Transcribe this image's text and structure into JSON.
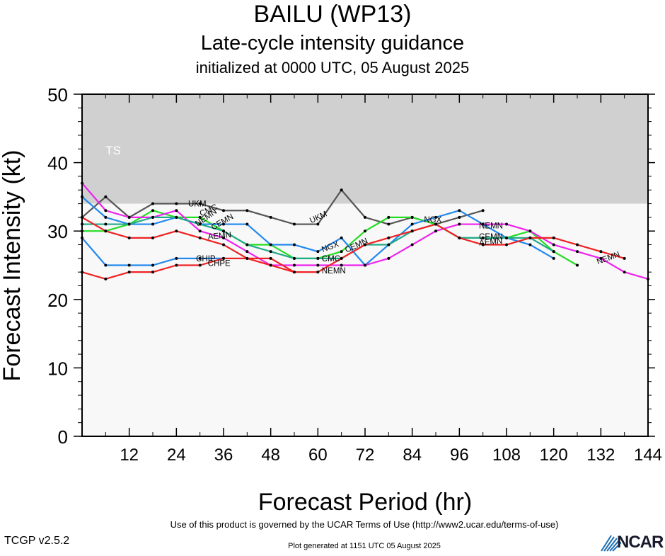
{
  "title": "BAILU (WP13)",
  "subtitle": "Late-cycle intensity guidance",
  "init_line": "initialized at 0000 UTC, 05 August 2025",
  "footer": {
    "terms": "Use of this product is governed by the UCAR Terms of Use (http://www2.ucar.edu/terms-of-use)",
    "version": "TCGP v2.5.2",
    "generated": "Plot generated at 1151 UTC   05 August 2025",
    "logo": "NCAR"
  },
  "colors": {
    "background_band": "#f8f8f8",
    "ts_band": "#d0d0d0",
    "logo_blue": "#1f6fb4"
  },
  "chart_data": {
    "type": "line",
    "xlabel": "Forecast Period (hr)",
    "ylabel": "Forecast Intensity (kt)",
    "xlim": [
      0,
      144
    ],
    "ylim": [
      0,
      50
    ],
    "xticks": [
      12,
      24,
      36,
      48,
      60,
      72,
      84,
      96,
      108,
      120,
      132,
      144
    ],
    "yticks": [
      0,
      10,
      20,
      30,
      40,
      50
    ],
    "bands": [
      {
        "label": "TS",
        "from": 34,
        "to": 50,
        "color": "#d0d0d0"
      },
      {
        "label": "",
        "from": 0,
        "to": 34,
        "color": "#f8f8f8"
      }
    ],
    "grid": false,
    "series": [
      {
        "name": "UKM",
        "color": "#555555",
        "x": [
          0,
          6,
          12,
          18,
          24,
          30,
          36,
          42,
          48,
          54,
          60,
          66,
          72,
          78,
          84,
          90,
          96,
          102
        ],
        "y": [
          32,
          35,
          32,
          34,
          34,
          34,
          33,
          33,
          32,
          31,
          31,
          36,
          32,
          31,
          32,
          31,
          32,
          33
        ],
        "labels": [
          {
            "x": 27,
            "y": 34,
            "text": "UKM",
            "angle": 0
          },
          {
            "x": 58,
            "y": 31.5,
            "text": "UKM",
            "angle": -25
          }
        ]
      },
      {
        "name": "CMC",
        "color": "#22dd22",
        "x": [
          0,
          6,
          12,
          18,
          24,
          30,
          36,
          42,
          48,
          54,
          60,
          66,
          72,
          78,
          84,
          90,
          96,
          102,
          108,
          114,
          120,
          126
        ],
        "y": [
          30,
          30,
          31,
          33,
          32,
          32,
          30,
          28,
          28,
          26,
          26,
          27,
          30,
          32,
          32,
          31,
          29,
          29,
          29,
          30,
          27,
          25
        ],
        "labels": [
          {
            "x": 30,
            "y": 32.5,
            "text": "CMC",
            "angle": -25
          },
          {
            "x": 61,
            "y": 26,
            "text": "CMC",
            "angle": 0
          }
        ]
      },
      {
        "name": "NGX",
        "color": "#2288ee",
        "x": [
          0,
          6,
          12,
          18,
          24,
          30,
          36,
          42,
          48,
          54,
          60,
          66,
          72,
          78,
          84,
          90,
          96,
          102,
          108,
          114,
          120
        ],
        "y": [
          35,
          32,
          31,
          31,
          32,
          31,
          31,
          31,
          28,
          28,
          27,
          29,
          25,
          28,
          31,
          32,
          33,
          31,
          29,
          28,
          26
        ],
        "labels": [
          {
            "x": 61,
            "y": 27.3,
            "text": "NGX",
            "angle": -20
          },
          {
            "x": 87,
            "y": 31.7,
            "text": "NGX",
            "angle": 0
          }
        ]
      },
      {
        "name": "NEMN",
        "color": "#ee22ee",
        "x": [
          0,
          6,
          12,
          18,
          24,
          30,
          36,
          42,
          48,
          54,
          60,
          66,
          72,
          78,
          84,
          90,
          96,
          102,
          108,
          114,
          120,
          126,
          132,
          138,
          144
        ],
        "y": [
          37,
          33,
          32,
          32,
          33,
          30,
          29,
          27,
          25,
          25,
          25,
          25,
          25,
          26,
          28,
          30,
          31,
          31,
          31,
          30,
          28,
          27,
          26,
          24,
          23
        ],
        "labels": [
          {
            "x": 29,
            "y": 31,
            "text": "NEMN",
            "angle": -35
          },
          {
            "x": 61,
            "y": 24.2,
            "text": "NEMN",
            "angle": 0
          },
          {
            "x": 101,
            "y": 30.8,
            "text": "NEMN",
            "angle": 0
          },
          {
            "x": 131,
            "y": 25.5,
            "text": "NEMN",
            "angle": -20
          }
        ]
      },
      {
        "name": "CEMN",
        "color": "#22aa88",
        "x": [
          0,
          6,
          12,
          18,
          24,
          30,
          36,
          42,
          48,
          54,
          60,
          66,
          72,
          78,
          84,
          90,
          96,
          102,
          108,
          114,
          120
        ],
        "y": [
          31,
          31,
          31,
          32,
          32,
          31,
          30,
          28,
          27,
          26,
          26,
          26,
          28,
          28,
          30,
          31,
          29,
          29,
          29,
          29,
          27
        ],
        "labels": [
          {
            "x": 33,
            "y": 30.5,
            "text": "CEMN",
            "angle": -30
          },
          {
            "x": 67,
            "y": 27.2,
            "text": "CEMN",
            "angle": -25
          },
          {
            "x": 101,
            "y": 29.2,
            "text": "CEMN",
            "angle": 0
          }
        ]
      },
      {
        "name": "AEMN",
        "color": "#ee2222",
        "x": [
          0,
          6,
          12,
          18,
          24,
          30,
          36,
          42,
          48,
          54,
          60,
          66,
          72,
          78,
          84,
          90,
          96,
          102,
          108,
          114,
          120,
          126,
          132,
          138
        ],
        "y": [
          32,
          30,
          29,
          29,
          30,
          29,
          28,
          26,
          25,
          24,
          24,
          26,
          28,
          29,
          30,
          31,
          29,
          28,
          28,
          29,
          29,
          28,
          27,
          26
        ],
        "labels": [
          {
            "x": 32,
            "y": 29.2,
            "text": "AEMN",
            "angle": -5
          },
          {
            "x": 101,
            "y": 28.3,
            "text": "AEMN",
            "angle": -5
          }
        ]
      },
      {
        "name": "CHIP",
        "color": "#2288ee",
        "x": [
          0,
          6,
          12,
          18,
          24,
          30,
          36
        ],
        "y": [
          29,
          25,
          25,
          25,
          26,
          26,
          26
        ],
        "labels": [
          {
            "x": 29,
            "y": 26,
            "text": "CHIP",
            "angle": 0
          }
        ]
      },
      {
        "name": "CHPE",
        "color": "#ee2222",
        "x": [
          0,
          6,
          12,
          18,
          24,
          30,
          36,
          42,
          48,
          54
        ],
        "y": [
          24,
          23,
          24,
          24,
          25,
          25,
          26,
          26,
          26,
          24
        ],
        "labels": [
          {
            "x": 32,
            "y": 25.3,
            "text": "CHPE",
            "angle": 0
          }
        ]
      }
    ]
  }
}
